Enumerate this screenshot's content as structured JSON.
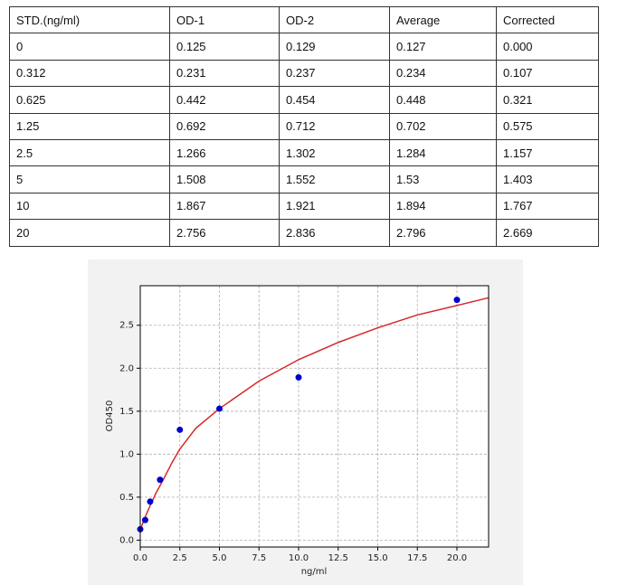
{
  "table": {
    "header": [
      "STD.(ng/ml)",
      "OD-1",
      "OD-2",
      "Average",
      "Corrected"
    ],
    "rows": [
      [
        "0",
        "0.125",
        "0.129",
        "0.127",
        "0.000"
      ],
      [
        "0.312",
        "0.231",
        "0.237",
        "0.234",
        "0.107"
      ],
      [
        "0.625",
        "0.442",
        "0.454",
        "0.448",
        "0.321"
      ],
      [
        "1.25",
        "0.692",
        "0.712",
        "0.702",
        "0.575"
      ],
      [
        "2.5",
        "1.266",
        "1.302",
        "1.284",
        "1.157"
      ],
      [
        "5",
        "1.508",
        "1.552",
        "1.53",
        "1.403"
      ],
      [
        "10",
        "1.867",
        "1.921",
        "1.894",
        "1.767"
      ],
      [
        "20",
        "2.756",
        "2.836",
        "2.796",
        "2.669"
      ]
    ]
  },
  "chart_data": {
    "type": "scatter",
    "xlabel": "ng/ml",
    "ylabel": "OD450",
    "xlim": [
      0,
      22
    ],
    "ylim": [
      -0.08,
      2.96
    ],
    "grid": true,
    "xticks": [
      {
        "value": 0,
        "label": "0.0"
      },
      2.5,
      {
        "value": 5,
        "label": "5.0"
      },
      7.5,
      {
        "value": 10,
        "label": "10.0"
      },
      12.5,
      {
        "value": 15,
        "label": "15.0"
      },
      17.5,
      {
        "value": 20,
        "label": "20.0"
      }
    ],
    "yticks": [
      {
        "value": 0,
        "label": "0.0"
      },
      0.5,
      {
        "value": 1,
        "label": "1.0"
      },
      1.5,
      {
        "value": 2,
        "label": "2.0"
      },
      2.5
    ],
    "series": [
      {
        "type": "scatter",
        "color": "#0000cc",
        "x": [
          0,
          0.312,
          0.625,
          1.25,
          2.5,
          5,
          10,
          20
        ],
        "values": [
          0.127,
          0.234,
          0.448,
          0.702,
          1.284,
          1.53,
          1.894,
          2.796
        ]
      },
      {
        "type": "line",
        "color": "#d62728",
        "x": [
          0,
          0.25,
          0.5,
          1,
          1.5,
          2,
          2.5,
          3.5,
          5,
          7.5,
          10,
          12.5,
          15,
          17.5,
          20,
          22
        ],
        "values": [
          0.12,
          0.24,
          0.35,
          0.55,
          0.72,
          0.9,
          1.06,
          1.3,
          1.53,
          1.85,
          2.1,
          2.3,
          2.47,
          2.62,
          2.73,
          2.82
        ]
      }
    ]
  }
}
